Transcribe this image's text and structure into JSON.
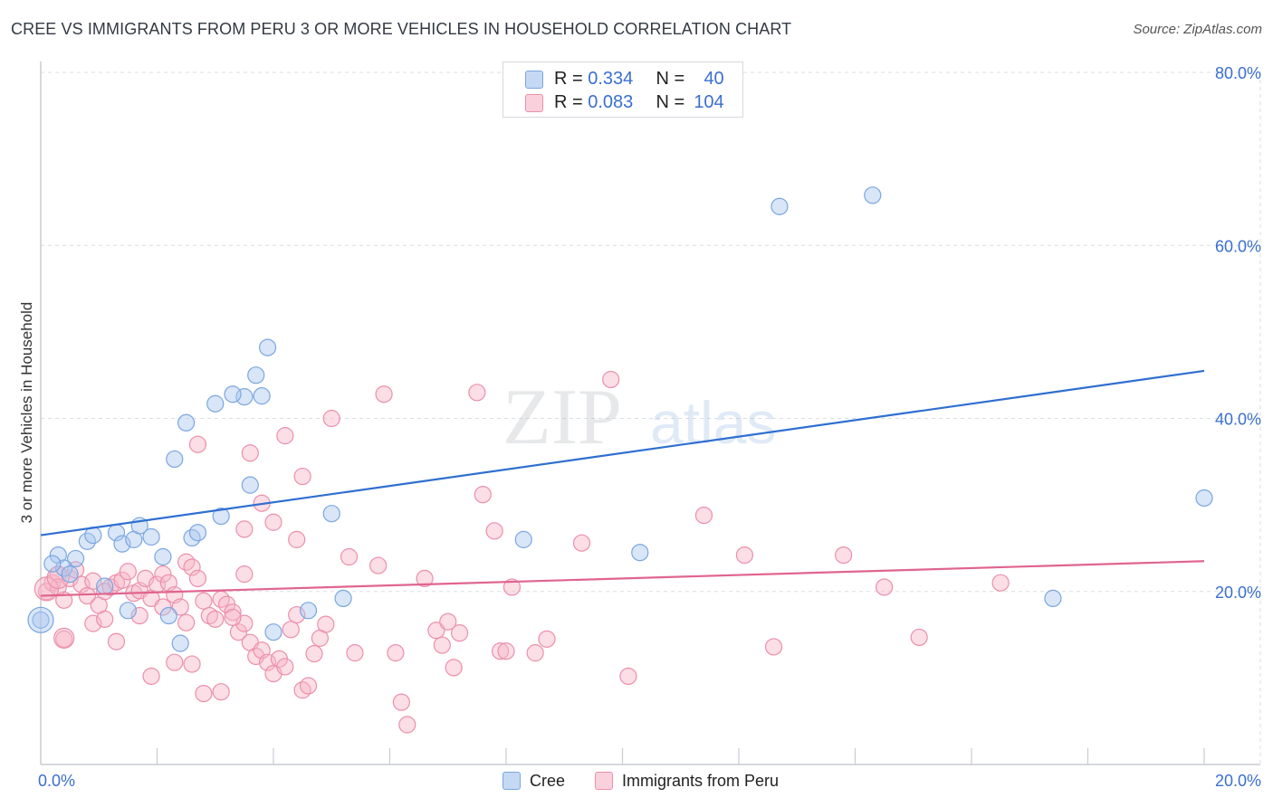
{
  "colors": {
    "cree_fill": "#aac8f0",
    "cree_stroke": "#7aa6e0",
    "cree_line": "#2f6fd0",
    "peru_fill": "#f7b6c8",
    "peru_stroke": "#ec8fab",
    "peru_line": "#e0658e",
    "accent_text": "#3a6fd0",
    "grid": "#dadde2"
  },
  "header": {
    "title": "CREE VS IMMIGRANTS FROM PERU 3 OR MORE VEHICLES IN HOUSEHOLD CORRELATION CHART",
    "source": "Source: ZipAtlas.com"
  },
  "legend_top": {
    "rows": [
      {
        "r_label": "R = ",
        "r_value": "0.334",
        "n_label": "N = ",
        "n_value": "40"
      },
      {
        "r_label": "R = ",
        "r_value": "0.083",
        "n_label": "N = ",
        "n_value": "104"
      }
    ]
  },
  "legend_bottom": {
    "items": [
      "Cree",
      "Immigrants from Peru"
    ]
  },
  "watermark": {
    "left": "ZIP",
    "right": "atlas"
  },
  "chart_data": {
    "type": "scatter",
    "title": "CREE VS IMMIGRANTS FROM PERU 3 OR MORE VEHICLES IN HOUSEHOLD CORRELATION CHART",
    "xlabel": "",
    "ylabel": "3 or more Vehicles in Household",
    "xlim": [
      0,
      20
    ],
    "ylim": [
      0,
      80
    ],
    "x_tick_labels": [
      "0.0%",
      "20.0%"
    ],
    "y_ticks": [
      20,
      40,
      60,
      80
    ],
    "y_tick_labels": [
      "20.0%",
      "40.0%",
      "60.0%",
      "80.0%"
    ],
    "grid": true,
    "legend_position": "bottom",
    "series": [
      {
        "name": "Cree",
        "trend": {
          "x": [
            0,
            20
          ],
          "y": [
            26.5,
            45.5
          ]
        },
        "points": [
          [
            0.3,
            24.2
          ],
          [
            0.8,
            25.8
          ],
          [
            0.9,
            26.5
          ],
          [
            1.3,
            26.8
          ],
          [
            1.4,
            25.5
          ],
          [
            1.6,
            26
          ],
          [
            1.7,
            27.6
          ],
          [
            1.9,
            26.3
          ],
          [
            0.6,
            23.8
          ],
          [
            0.4,
            22.7
          ],
          [
            0.2,
            23.2
          ],
          [
            0.5,
            22
          ],
          [
            1.1,
            20.6
          ],
          [
            1.5,
            17.8
          ],
          [
            2.2,
            17.2
          ],
          [
            2.4,
            14
          ],
          [
            2.1,
            24
          ],
          [
            2.6,
            26.2
          ],
          [
            2.7,
            26.8
          ],
          [
            3.1,
            28.7
          ],
          [
            3.6,
            32.3
          ],
          [
            3.7,
            45
          ],
          [
            3.9,
            48.2
          ],
          [
            3.5,
            42.5
          ],
          [
            3.3,
            42.8
          ],
          [
            3.0,
            41.7
          ],
          [
            2.5,
            39.5
          ],
          [
            2.3,
            35.3
          ],
          [
            3.8,
            42.6
          ],
          [
            4.6,
            17.8
          ],
          [
            4.0,
            15.3
          ],
          [
            5.2,
            19.2
          ],
          [
            5.0,
            29
          ],
          [
            8.3,
            26
          ],
          [
            12.7,
            64.5
          ],
          [
            14.3,
            65.8
          ],
          [
            17.4,
            19.2
          ],
          [
            20.0,
            30.8
          ],
          [
            0.0,
            16.7
          ],
          [
            10.3,
            24.5
          ]
        ]
      },
      {
        "name": "Immigrants from Peru",
        "trend": {
          "x": [
            0,
            20
          ],
          "y": [
            19.5,
            23.5
          ]
        },
        "points": [
          [
            0.1,
            20
          ],
          [
            0.2,
            21
          ],
          [
            0.3,
            22
          ],
          [
            0.3,
            20.5
          ],
          [
            0.4,
            19
          ],
          [
            0.5,
            21.5
          ],
          [
            0.6,
            22.5
          ],
          [
            0.7,
            20.8
          ],
          [
            0.8,
            19.5
          ],
          [
            0.9,
            21.2
          ],
          [
            1.0,
            18.4
          ],
          [
            1.1,
            20
          ],
          [
            1.2,
            20.5
          ],
          [
            1.3,
            21
          ],
          [
            1.4,
            21.3
          ],
          [
            1.5,
            22.3
          ],
          [
            1.6,
            19.8
          ],
          [
            1.7,
            20.1
          ],
          [
            1.8,
            21.5
          ],
          [
            1.9,
            19.2
          ],
          [
            2.0,
            20.8
          ],
          [
            2.1,
            22
          ],
          [
            2.2,
            21
          ],
          [
            2.3,
            19.6
          ],
          [
            2.4,
            18.2
          ],
          [
            2.5,
            23.4
          ],
          [
            2.6,
            22.8
          ],
          [
            2.7,
            21.5
          ],
          [
            2.8,
            18.9
          ],
          [
            2.9,
            17.2
          ],
          [
            3.0,
            16.8
          ],
          [
            3.1,
            19.1
          ],
          [
            3.2,
            18.5
          ],
          [
            3.3,
            17.6
          ],
          [
            3.4,
            15.3
          ],
          [
            3.5,
            16.3
          ],
          [
            3.6,
            14.1
          ],
          [
            3.7,
            12.5
          ],
          [
            3.8,
            13.2
          ],
          [
            3.9,
            11.8
          ],
          [
            4.0,
            10.5
          ],
          [
            4.1,
            12.2
          ],
          [
            4.2,
            11.3
          ],
          [
            4.3,
            15.6
          ],
          [
            4.4,
            17.3
          ],
          [
            4.5,
            8.6
          ],
          [
            4.6,
            9.1
          ],
          [
            4.7,
            12.8
          ],
          [
            4.8,
            14.6
          ],
          [
            4.9,
            16.2
          ],
          [
            0.4,
            14.5
          ],
          [
            0.9,
            16.3
          ],
          [
            1.1,
            16.8
          ],
          [
            1.3,
            14.2
          ],
          [
            1.7,
            17.2
          ],
          [
            1.9,
            10.2
          ],
          [
            2.1,
            18.2
          ],
          [
            2.3,
            11.8
          ],
          [
            2.5,
            16.4
          ],
          [
            2.6,
            11.6
          ],
          [
            2.8,
            8.2
          ],
          [
            3.1,
            8.4
          ],
          [
            3.3,
            17
          ],
          [
            3.5,
            27.2
          ],
          [
            3.6,
            36
          ],
          [
            3.8,
            30.2
          ],
          [
            4.0,
            28
          ],
          [
            4.2,
            38
          ],
          [
            4.4,
            26
          ],
          [
            4.5,
            33.3
          ],
          [
            5.0,
            40
          ],
          [
            5.3,
            24
          ],
          [
            5.8,
            23
          ],
          [
            6.2,
            7.2
          ],
          [
            6.3,
            4.6
          ],
          [
            6.6,
            21.5
          ],
          [
            6.8,
            15.5
          ],
          [
            6.9,
            13.8
          ],
          [
            7.0,
            16.5
          ],
          [
            7.1,
            11.2
          ],
          [
            7.2,
            15.2
          ],
          [
            7.5,
            43
          ],
          [
            7.6,
            31.2
          ],
          [
            7.8,
            27
          ],
          [
            7.9,
            13.1
          ],
          [
            8.0,
            13.1
          ],
          [
            8.1,
            20.5
          ],
          [
            8.5,
            12.9
          ],
          [
            8.7,
            14.5
          ],
          [
            9.3,
            25.6
          ],
          [
            9.8,
            44.5
          ],
          [
            10.1,
            10.2
          ],
          [
            11.4,
            28.8
          ],
          [
            12.1,
            24.2
          ],
          [
            12.6,
            13.6
          ],
          [
            13.8,
            24.2
          ],
          [
            14.5,
            20.5
          ],
          [
            15.1,
            14.7
          ],
          [
            16.5,
            21
          ],
          [
            6.1,
            12.9
          ],
          [
            5.4,
            12.9
          ],
          [
            2.7,
            37
          ],
          [
            5.9,
            42.8
          ],
          [
            3.5,
            22
          ]
        ]
      }
    ]
  }
}
